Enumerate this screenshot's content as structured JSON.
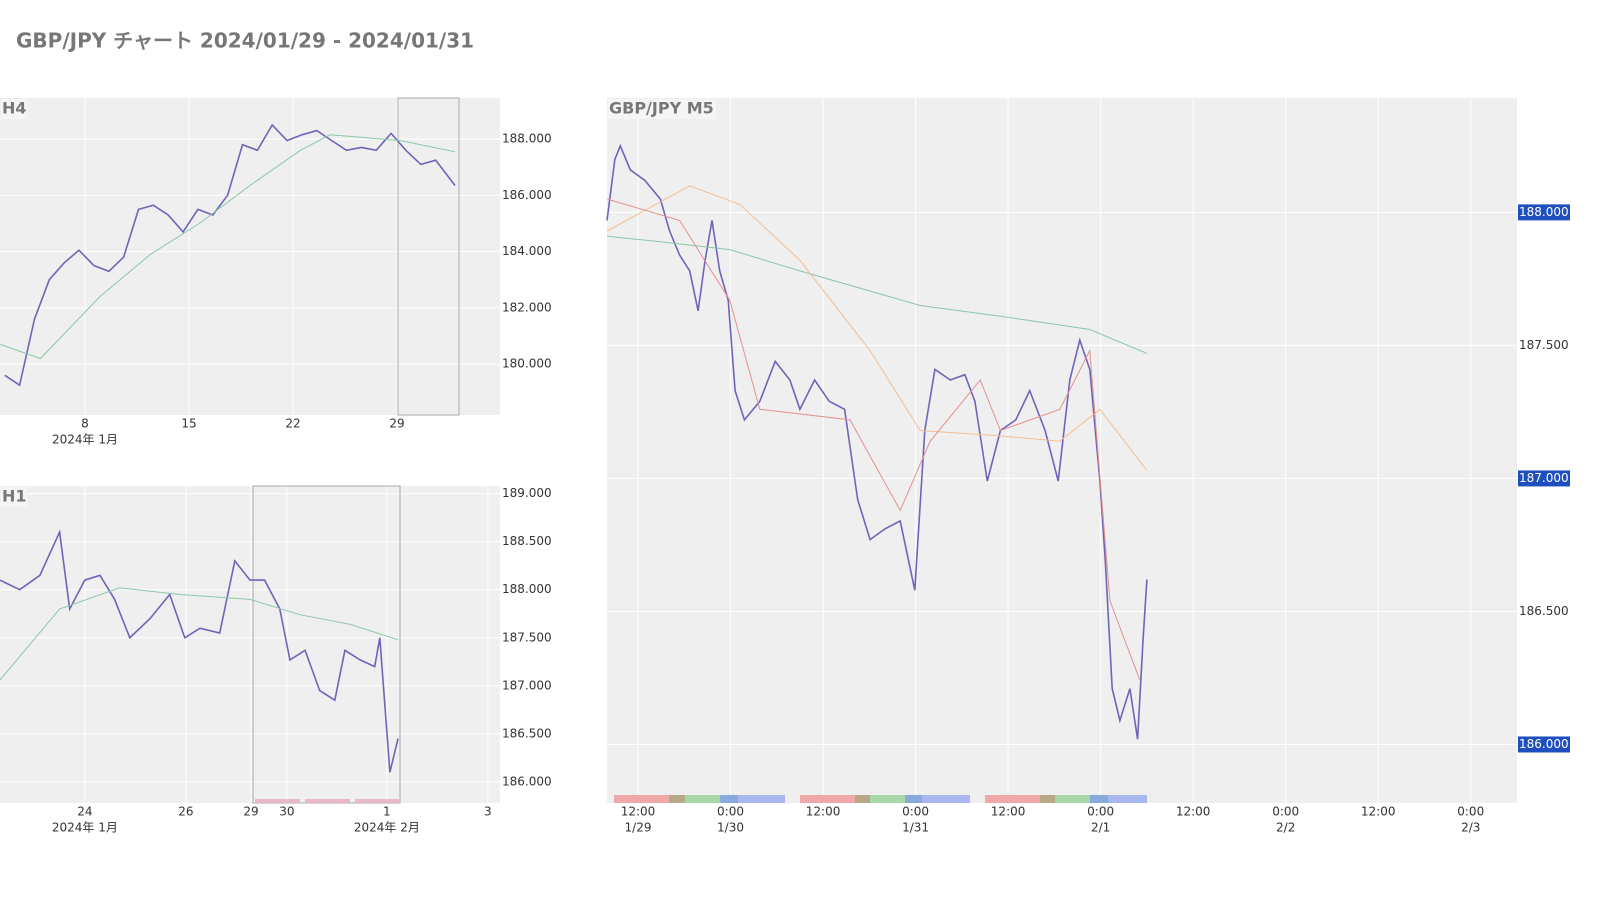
{
  "title": "GBP/JPY チャート 2024/01/29 - 2024/01/31",
  "chart_data": [
    {
      "type": "line",
      "title": "H4",
      "xlim": [
        2.28,
        35.93
      ],
      "xticks": [
        8,
        15,
        22,
        29
      ],
      "sub_xticks": [
        {
          "value": 8,
          "label": "2024年 1月"
        }
      ],
      "ylim": [
        178.19,
        189.46
      ],
      "yticks": [
        {
          "value": 180,
          "label": "180.000"
        },
        {
          "value": 182,
          "label": "182.000"
        },
        {
          "value": 184,
          "label": "184.000"
        },
        {
          "value": 186,
          "label": "186.000"
        },
        {
          "value": 188,
          "label": "188.000"
        }
      ],
      "highlight": [
        29.06,
        33.17
      ],
      "grid": true,
      "series": [
        {
          "color": "#6f64b8",
          "x": [
            2.6,
            3.6,
            4.6,
            5.6,
            6.6,
            7.6,
            8.6,
            9.6,
            10.6,
            11.6,
            12.6,
            13.6,
            14.6,
            15.6,
            16.6,
            17.6,
            18.6,
            19.6,
            20.6,
            21.6,
            22.6,
            23.6,
            24.6,
            25.6,
            26.6,
            27.6,
            28.6,
            29.6,
            30.6,
            31.6,
            32.9
          ],
          "values": [
            179.6,
            179.25,
            181.6,
            183,
            183.6,
            184.05,
            183.5,
            183.3,
            183.8,
            185.5,
            185.65,
            185.3,
            184.7,
            185.5,
            185.3,
            186,
            187.8,
            187.6,
            188.5,
            187.95,
            188.15,
            188.3,
            187.95,
            187.6,
            187.7,
            187.6,
            188.2,
            187.6,
            187.1,
            187.25,
            186.35
          ]
        },
        {
          "color": "#8cc7a6",
          "x": [
            2.3,
            5,
            9,
            12.4,
            15.7,
            19.1,
            22.5,
            24.5,
            29.2,
            32.9
          ],
          "values": [
            180.7,
            180.2,
            182.4,
            183.9,
            185,
            186.35,
            187.6,
            188.15,
            187.95,
            187.55
          ]
        }
      ]
    },
    {
      "type": "line",
      "title": "H1",
      "xlim": [
        -1.68,
        8.22
      ],
      "xticks": [
        {
          "value": 0,
          "label": "24"
        },
        {
          "value": 2,
          "label": "26"
        },
        {
          "value": 3.29,
          "label": "29"
        },
        {
          "value": 4,
          "label": "30"
        },
        {
          "value": 5.98,
          "label": "1"
        },
        {
          "value": 7.98,
          "label": "3"
        }
      ],
      "sub_xticks": [
        {
          "value": 0,
          "label": "2024年 1月"
        },
        {
          "value": 5.98,
          "label": "2024年 2月"
        }
      ],
      "ylim": [
        185.78,
        189.08
      ],
      "yticks": [
        {
          "value": 186,
          "label": "186.000"
        },
        {
          "value": 186.5,
          "label": "186.500"
        },
        {
          "value": 187,
          "label": "187.000"
        },
        {
          "value": 187.5,
          "label": "187.500"
        },
        {
          "value": 188,
          "label": "188.000"
        },
        {
          "value": 188.5,
          "label": "188.500"
        },
        {
          "value": 189,
          "label": "189.000"
        }
      ],
      "highlight": [
        3.33,
        6.24
      ],
      "grid": true,
      "series": [
        {
          "color": "#6f64b8",
          "x": [
            -1.68,
            -1.29,
            -0.89,
            -0.5,
            -0.3,
            0,
            0.3,
            0.59,
            0.89,
            1.29,
            1.68,
            1.98,
            2.28,
            2.67,
            2.97,
            3.27,
            3.56,
            3.86,
            4.06,
            4.36,
            4.65,
            4.95,
            5.15,
            5.45,
            5.74,
            5.84,
            6.04,
            6.2
          ],
          "values": [
            188.1,
            188,
            188.15,
            188.6,
            187.8,
            188.1,
            188.15,
            187.9,
            187.5,
            187.7,
            187.95,
            187.5,
            187.6,
            187.55,
            188.3,
            188.1,
            188.1,
            187.8,
            187.27,
            187.37,
            186.95,
            186.85,
            187.37,
            187.27,
            187.2,
            187.5,
            186.1,
            186.45
          ]
        },
        {
          "color": "#8cc7a6",
          "x": [
            -1.68,
            -0.5,
            0.69,
            1.88,
            3.27,
            4.26,
            5.25,
            6.2
          ],
          "values": [
            187.06,
            187.8,
            188.02,
            187.95,
            187.9,
            187.74,
            187.64,
            187.48
          ]
        }
      ]
    },
    {
      "type": "line",
      "title": "GBP/JPY M5",
      "xlim": [
        7.98,
        126
      ],
      "xticks": [
        {
          "value": 12,
          "label": "12:00"
        },
        {
          "value": 24,
          "label": "0:00"
        },
        {
          "value": 36,
          "label": "12:00"
        },
        {
          "value": 48,
          "label": "0:00"
        },
        {
          "value": 60,
          "label": "12:00"
        },
        {
          "value": 72,
          "label": "0:00"
        },
        {
          "value": 84,
          "label": "12:00"
        },
        {
          "value": 96,
          "label": "0:00"
        },
        {
          "value": 108,
          "label": "12:00"
        },
        {
          "value": 120,
          "label": "0:00"
        }
      ],
      "sub_xticks": [
        {
          "value": 12,
          "label": "1/29"
        },
        {
          "value": 24,
          "label": "1/30"
        },
        {
          "value": 48,
          "label": "1/31"
        },
        {
          "value": 72,
          "label": "2/1"
        },
        {
          "value": 96,
          "label": "2/2"
        },
        {
          "value": 120,
          "label": "2/3"
        }
      ],
      "ylim": [
        185.78,
        188.43
      ],
      "yticks": [
        {
          "value": 186,
          "label": "186.000",
          "boxed": true
        },
        {
          "value": 186.5,
          "label": "186.500"
        },
        {
          "value": 187,
          "label": "187.000",
          "boxed": true
        },
        {
          "value": 187.5,
          "label": "187.500"
        },
        {
          "value": 188,
          "label": "188.000",
          "boxed": true
        }
      ],
      "box_color": "#1f4fbf",
      "grid": true,
      "series": [
        {
          "color": "#6f64b8",
          "x": [
            7.98,
            9,
            9.7,
            11,
            12.9,
            14.9,
            16.1,
            17.4,
            18.7,
            19.8,
            20.7,
            21.6,
            22.6,
            23.7,
            24.6,
            25.8,
            27.8,
            29.8,
            31.7,
            33,
            34.9,
            36.8,
            38.8,
            40.5,
            42.1,
            44,
            46,
            47.9,
            49.2,
            50.5,
            52.5,
            54.4,
            55.7,
            57.3,
            59,
            61,
            62.8,
            64.8,
            66.5,
            68,
            69.3,
            70.6,
            71.9,
            72.6,
            73.5,
            74.5,
            75.8,
            76.8,
            77.5,
            78
          ],
          "values": [
            187.97,
            188.2,
            188.25,
            188.16,
            188.12,
            188.05,
            187.93,
            187.84,
            187.78,
            187.63,
            187.82,
            187.97,
            187.78,
            187.67,
            187.33,
            187.22,
            187.29,
            187.44,
            187.37,
            187.26,
            187.37,
            187.29,
            187.26,
            186.92,
            186.77,
            186.81,
            186.84,
            186.58,
            187.18,
            187.41,
            187.37,
            187.39,
            187.29,
            186.99,
            187.18,
            187.22,
            187.33,
            187.18,
            186.99,
            187.37,
            187.52,
            187.41,
            186.99,
            186.69,
            186.21,
            186.09,
            186.21,
            186.02,
            186.39,
            186.62
          ]
        },
        {
          "color": "#8cc7a6",
          "x": [
            7.98,
            14.9,
            23.9,
            33,
            48.6,
            59,
            70.6,
            78
          ],
          "values": [
            187.91,
            187.89,
            187.86,
            187.78,
            187.65,
            187.61,
            187.56,
            187.47
          ]
        },
        {
          "color": "#f2bf94",
          "x": [
            8,
            18.7,
            25.2,
            33,
            42.1,
            48.6,
            59,
            66.7,
            71.9,
            78
          ],
          "values": [
            187.93,
            188.1,
            188.03,
            187.82,
            187.48,
            187.18,
            187.16,
            187.14,
            187.26,
            187.03
          ]
        },
        {
          "color": "#e59090",
          "x": [
            8,
            17.4,
            23.9,
            27.8,
            39.5,
            46,
            49.9,
            56.4,
            59,
            66.7,
            70.6,
            73.2,
            77.1
          ],
          "values": [
            188.05,
            187.97,
            187.67,
            187.26,
            187.22,
            186.88,
            187.14,
            187.37,
            187.18,
            187.26,
            187.48,
            186.54,
            186.24
          ]
        }
      ]
    }
  ]
}
